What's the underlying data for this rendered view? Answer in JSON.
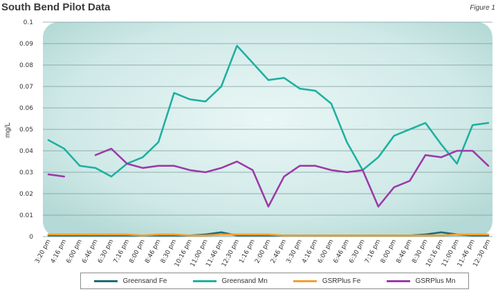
{
  "page": {
    "title": "South Bend Pilot Data",
    "figure_label": "Figure 1"
  },
  "chart_data": {
    "type": "line",
    "title": "South Bend Pilot Data",
    "xlabel": "",
    "ylabel": "mg/L",
    "ylim": [
      0,
      0.1
    ],
    "yticks": [
      "0",
      "0.01",
      "0.02",
      "0.03",
      "0.04",
      "0.05",
      "0.06",
      "0.07",
      "0.08",
      "0.09",
      "0.1"
    ],
    "grid": true,
    "legend_position": "bottom",
    "categories": [
      "3:20 pm",
      "4:16 pm",
      "6:00 pm",
      "6:46 pm",
      "6:30 pm",
      "7:16 pm",
      "8:00 pm",
      "8:46 pm",
      "8:30 pm",
      "10:16 pm",
      "11:00 pm",
      "11:46 pm",
      "12:30 pm",
      "1:16 pm",
      "2:00 pm",
      "2:46 pm",
      "3:30 pm",
      "4:16 pm",
      "6:00 pm",
      "6:46 pm",
      "6:30 pm",
      "7:16 pm",
      "8:00 pm",
      "8:46 pm",
      "8:30 pm",
      "10:16 pm",
      "11:00 pm",
      "11:46 pm",
      "12:30 pm"
    ],
    "series": [
      {
        "name": "Greensand Fe",
        "color": "#1e6b7a",
        "values": [
          0.0005,
          0.0005,
          0.0005,
          0.0005,
          0.0005,
          0.0005,
          0.0005,
          0.0005,
          0.0005,
          0.0005,
          0.001,
          0.002,
          0.0005,
          0.0005,
          0.0005,
          0.0005,
          0.0005,
          0.0005,
          0.0005,
          0.0005,
          0.0005,
          0.0005,
          0.0005,
          0.0005,
          0.001,
          0.002,
          0.001,
          0.0005,
          0.0005
        ]
      },
      {
        "name": "Greensand Mn",
        "color": "#1fb0a0",
        "values": [
          0.045,
          0.041,
          0.033,
          0.032,
          0.028,
          0.034,
          0.037,
          0.044,
          0.067,
          0.064,
          0.063,
          0.07,
          0.089,
          0.081,
          0.073,
          0.074,
          0.069,
          0.068,
          0.062,
          0.044,
          0.031,
          0.037,
          0.047,
          0.05,
          0.053,
          0.043,
          0.034,
          0.052,
          0.053
        ]
      },
      {
        "name": "GSRPlus Fe",
        "color": "#f0a030",
        "values": [
          0.001,
          0.001,
          0.001,
          0.001,
          0.001,
          0.001,
          0.0005,
          0.001,
          0.001,
          0.0005,
          0.0005,
          0.001,
          0.001,
          0.001,
          0.001,
          0.0005,
          0.0005,
          0.0005,
          0.0005,
          0.0005,
          0.0005,
          0.0005,
          0.0005,
          0.0005,
          0.0005,
          0.0005,
          0.001,
          0.001,
          0.001
        ]
      },
      {
        "name": "GSRPlus Mn",
        "color": "#9c3aa8",
        "values": [
          0.029,
          0.028,
          null,
          0.038,
          0.041,
          0.034,
          0.032,
          0.033,
          0.033,
          0.031,
          0.03,
          0.032,
          0.035,
          0.031,
          0.014,
          0.028,
          0.033,
          0.033,
          0.031,
          0.03,
          0.031,
          0.014,
          0.023,
          0.026,
          0.038,
          0.037,
          0.04,
          0.04,
          0.033
        ]
      }
    ]
  }
}
